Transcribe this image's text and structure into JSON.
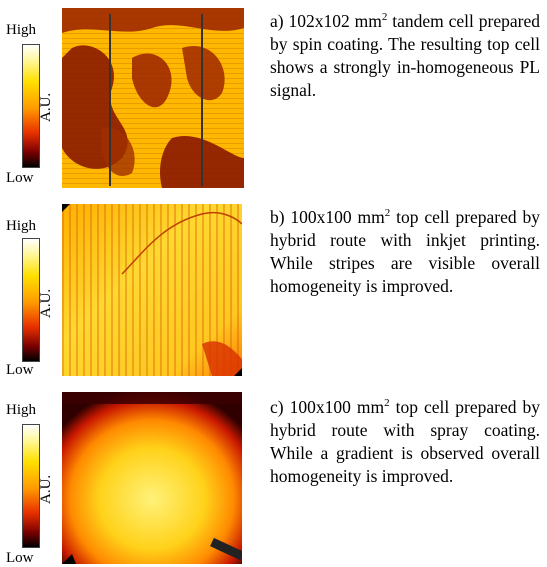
{
  "panels": [
    {
      "colorbar": {
        "high": "High",
        "low": "Low",
        "unit": "A.U."
      },
      "caption": {
        "prefix": "a) 102x102 mm",
        "sup": "2",
        "text": " tandem cell prepared by spin coating. The resulting top cell shows a strongly in-homogeneous PL signal."
      }
    },
    {
      "colorbar": {
        "high": "High",
        "low": "Low",
        "unit": "A.U."
      },
      "caption": {
        "prefix": "b) 100x100 mm",
        "sup": "2",
        "text": " top cell prepared by hybrid route with inkjet printing. While stripes are visible overall homogeneity is improved."
      }
    },
    {
      "colorbar": {
        "high": "High",
        "low": "Low",
        "unit": "A.U."
      },
      "caption": {
        "prefix": "c) 100x100 mm",
        "sup": "2",
        "text": " top cell prepared by hybrid route with spray coating. While a gradient is observed overall homogeneity is improved."
      }
    }
  ]
}
